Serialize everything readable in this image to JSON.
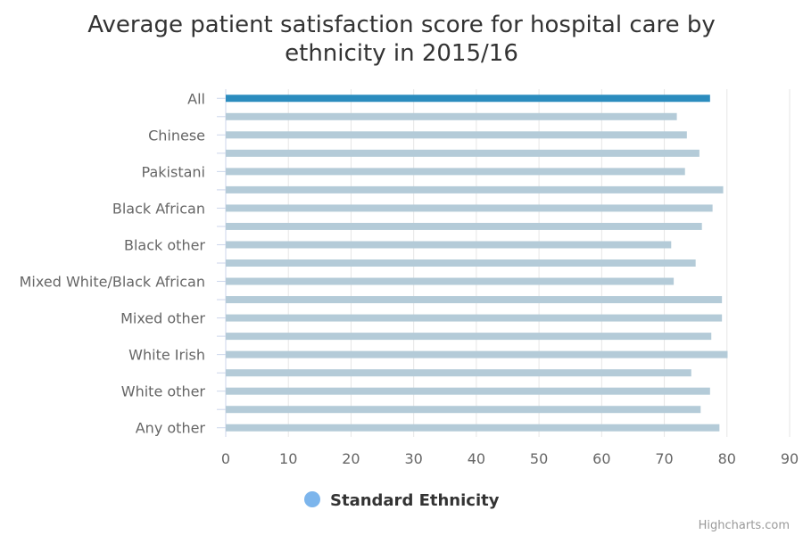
{
  "chart_data": {
    "type": "bar",
    "orientation": "horizontal",
    "title_lines": [
      "Average patient satisfaction score for hospital care by",
      "ethnicity in 2015/16"
    ],
    "categories": [
      "All",
      "",
      "Chinese",
      "",
      "Pakistani",
      "",
      "Black African",
      "",
      "Black other",
      "",
      "Mixed White/Black African",
      "",
      "Mixed other",
      "",
      "White Irish",
      "",
      "White other",
      "",
      "Any other"
    ],
    "series": [
      {
        "name": "Standard Ethnicity",
        "values": [
          77.3,
          72.0,
          73.6,
          75.6,
          73.3,
          79.4,
          77.7,
          76.0,
          71.1,
          75.0,
          71.5,
          79.2,
          79.2,
          77.5,
          80.1,
          74.3,
          77.3,
          75.8,
          78.8
        ],
        "highlight_index": 0,
        "highlight_color": "#2b8cbe",
        "bar_color": "#b4cbd8",
        "legend_color": "#7cb5ec"
      }
    ],
    "xlim": [
      0,
      90
    ],
    "x_ticks": [
      0,
      10,
      20,
      30,
      40,
      50,
      60,
      70,
      80,
      90
    ],
    "grid": true,
    "legend_position": "bottom-center"
  },
  "credits": "Highcharts.com"
}
